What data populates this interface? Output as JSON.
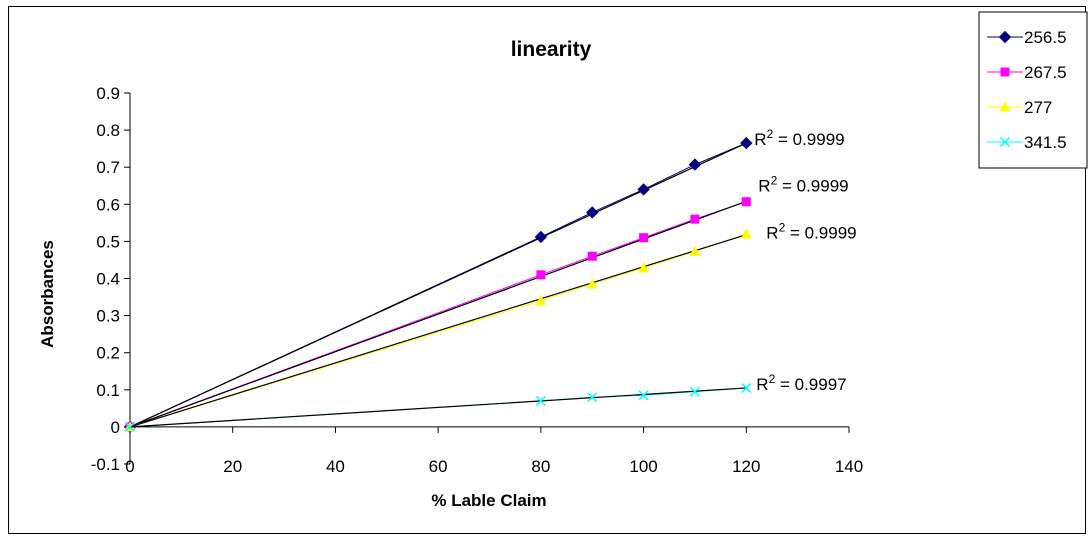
{
  "chart_data": {
    "type": "scatter",
    "title": "linearity",
    "xlabel": "% Lable Claim",
    "ylabel": "Absorbances",
    "xlim": [
      0,
      140
    ],
    "ylim": [
      -0.1,
      0.9
    ],
    "x_ticks": [
      0,
      20,
      40,
      60,
      80,
      100,
      120,
      140
    ],
    "y_ticks": [
      -0.1,
      0,
      0.1,
      0.2,
      0.3,
      0.4,
      0.5,
      0.6,
      0.7,
      0.8,
      0.9
    ],
    "x_tick_labels": [
      "0",
      "20",
      "40",
      "60",
      "80",
      "100",
      "120",
      "140"
    ],
    "y_tick_labels": [
      "-0.1",
      "0",
      "0.1",
      "0.2",
      "0.3",
      "0.4",
      "0.5",
      "0.6",
      "0.7",
      "0.8",
      "0.9"
    ],
    "grid": false,
    "legend_position": "top-right",
    "x": [
      0,
      80,
      90,
      100,
      110,
      120
    ],
    "series": [
      {
        "name": "256.5",
        "marker": "diamond",
        "color": "#000080",
        "values": [
          0,
          0.512,
          0.578,
          0.64,
          0.707,
          0.765
        ],
        "r2": "R2 = 0.9999",
        "trend_end": 0.765
      },
      {
        "name": "267.5",
        "marker": "square",
        "color": "#ff00ff",
        "values": [
          0,
          0.41,
          0.46,
          0.51,
          0.56,
          0.607
        ],
        "r2": "R2 = 0.9999",
        "trend_end": 0.608
      },
      {
        "name": "277",
        "marker": "triangle",
        "color": "#ffff00",
        "values": [
          0,
          0.34,
          0.385,
          0.428,
          0.473,
          0.52
        ],
        "r2": "R2 = 0.9999",
        "trend_end": 0.518
      },
      {
        "name": "341.5",
        "marker": "x",
        "color": "#00ffff",
        "values": [
          0,
          0.07,
          0.08,
          0.085,
          0.095,
          0.105
        ],
        "r2": "R2 = 0.9997",
        "trend_end": 0.105
      }
    ]
  }
}
